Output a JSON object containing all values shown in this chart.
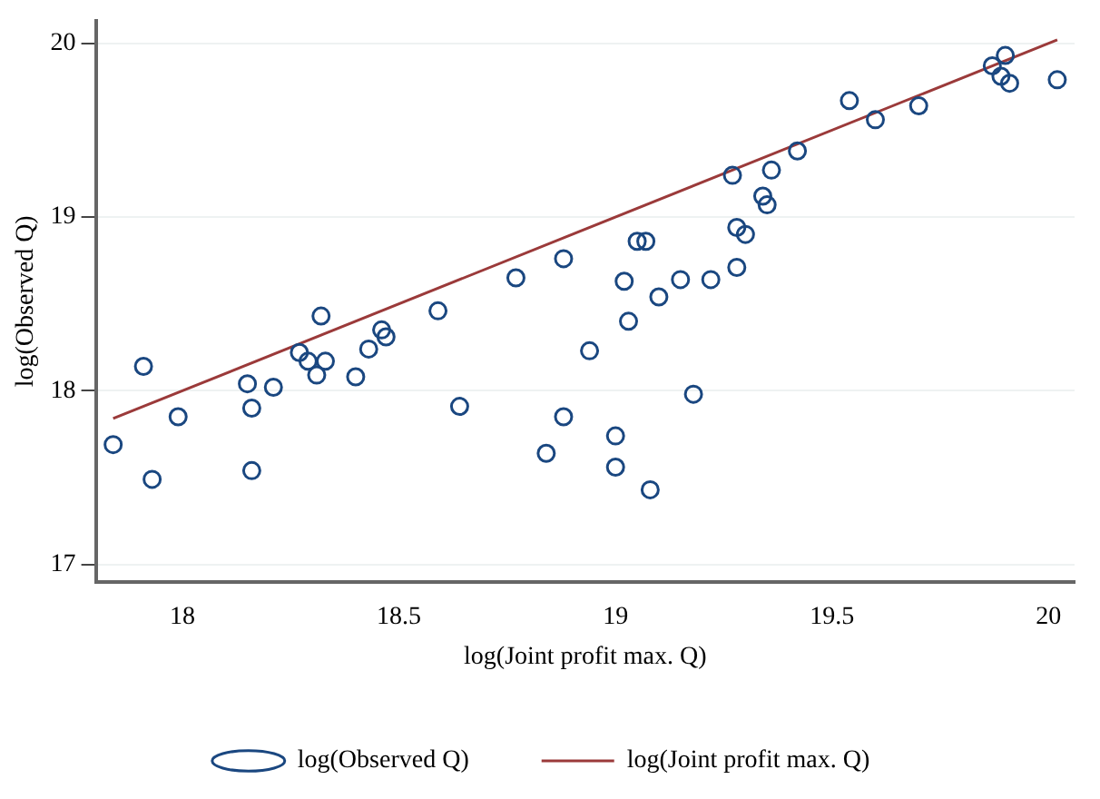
{
  "chart_data": {
    "type": "scatter",
    "xlabel": "log(Joint profit max. Q)",
    "ylabel": "log(Observed Q)",
    "xlim": [
      17.8,
      20.06
    ],
    "xticks": [
      18,
      18.5,
      19,
      19.5,
      20
    ],
    "ylim": [
      16.9,
      20.13
    ],
    "yticks": [
      17,
      18,
      19,
      20
    ],
    "grid": "y",
    "legend": "bottom",
    "series": [
      {
        "name": "log(Observed Q)",
        "type": "scatter",
        "marker": "circle",
        "color": "#1a4780",
        "x": [
          17.84,
          17.91,
          17.93,
          17.99,
          18.15,
          18.16,
          18.16,
          18.21,
          18.27,
          18.29,
          18.32,
          18.31,
          18.33,
          18.4,
          18.43,
          18.46,
          18.47,
          18.59,
          18.64,
          18.77,
          18.84,
          18.88,
          18.88,
          18.94,
          19.0,
          19.0,
          19.02,
          19.03,
          19.05,
          19.07,
          19.08,
          19.1,
          19.15,
          19.18,
          19.22,
          19.27,
          19.28,
          19.28,
          19.3,
          19.34,
          19.35,
          19.36,
          19.42,
          19.54,
          19.6,
          19.7,
          19.87,
          19.89,
          19.9,
          19.91,
          20.02
        ],
        "values": [
          17.69,
          18.14,
          17.49,
          17.85,
          18.04,
          17.9,
          17.54,
          18.02,
          18.22,
          18.17,
          18.43,
          18.09,
          18.17,
          18.08,
          18.24,
          18.35,
          18.31,
          18.46,
          17.91,
          18.65,
          17.64,
          17.85,
          18.76,
          18.23,
          17.74,
          17.56,
          18.63,
          18.4,
          18.86,
          18.86,
          17.43,
          18.54,
          18.64,
          17.98,
          18.64,
          19.24,
          18.71,
          18.94,
          18.9,
          19.12,
          19.07,
          19.27,
          19.38,
          19.67,
          19.56,
          19.64,
          19.87,
          19.81,
          19.93,
          19.77,
          19.79
        ]
      },
      {
        "name": "log(Joint profit max. Q)",
        "type": "line",
        "marker": "none",
        "line_style": "solid",
        "color": "#9b3a3a",
        "x": [
          17.84,
          20.02
        ],
        "values": [
          17.84,
          20.02
        ]
      }
    ]
  }
}
